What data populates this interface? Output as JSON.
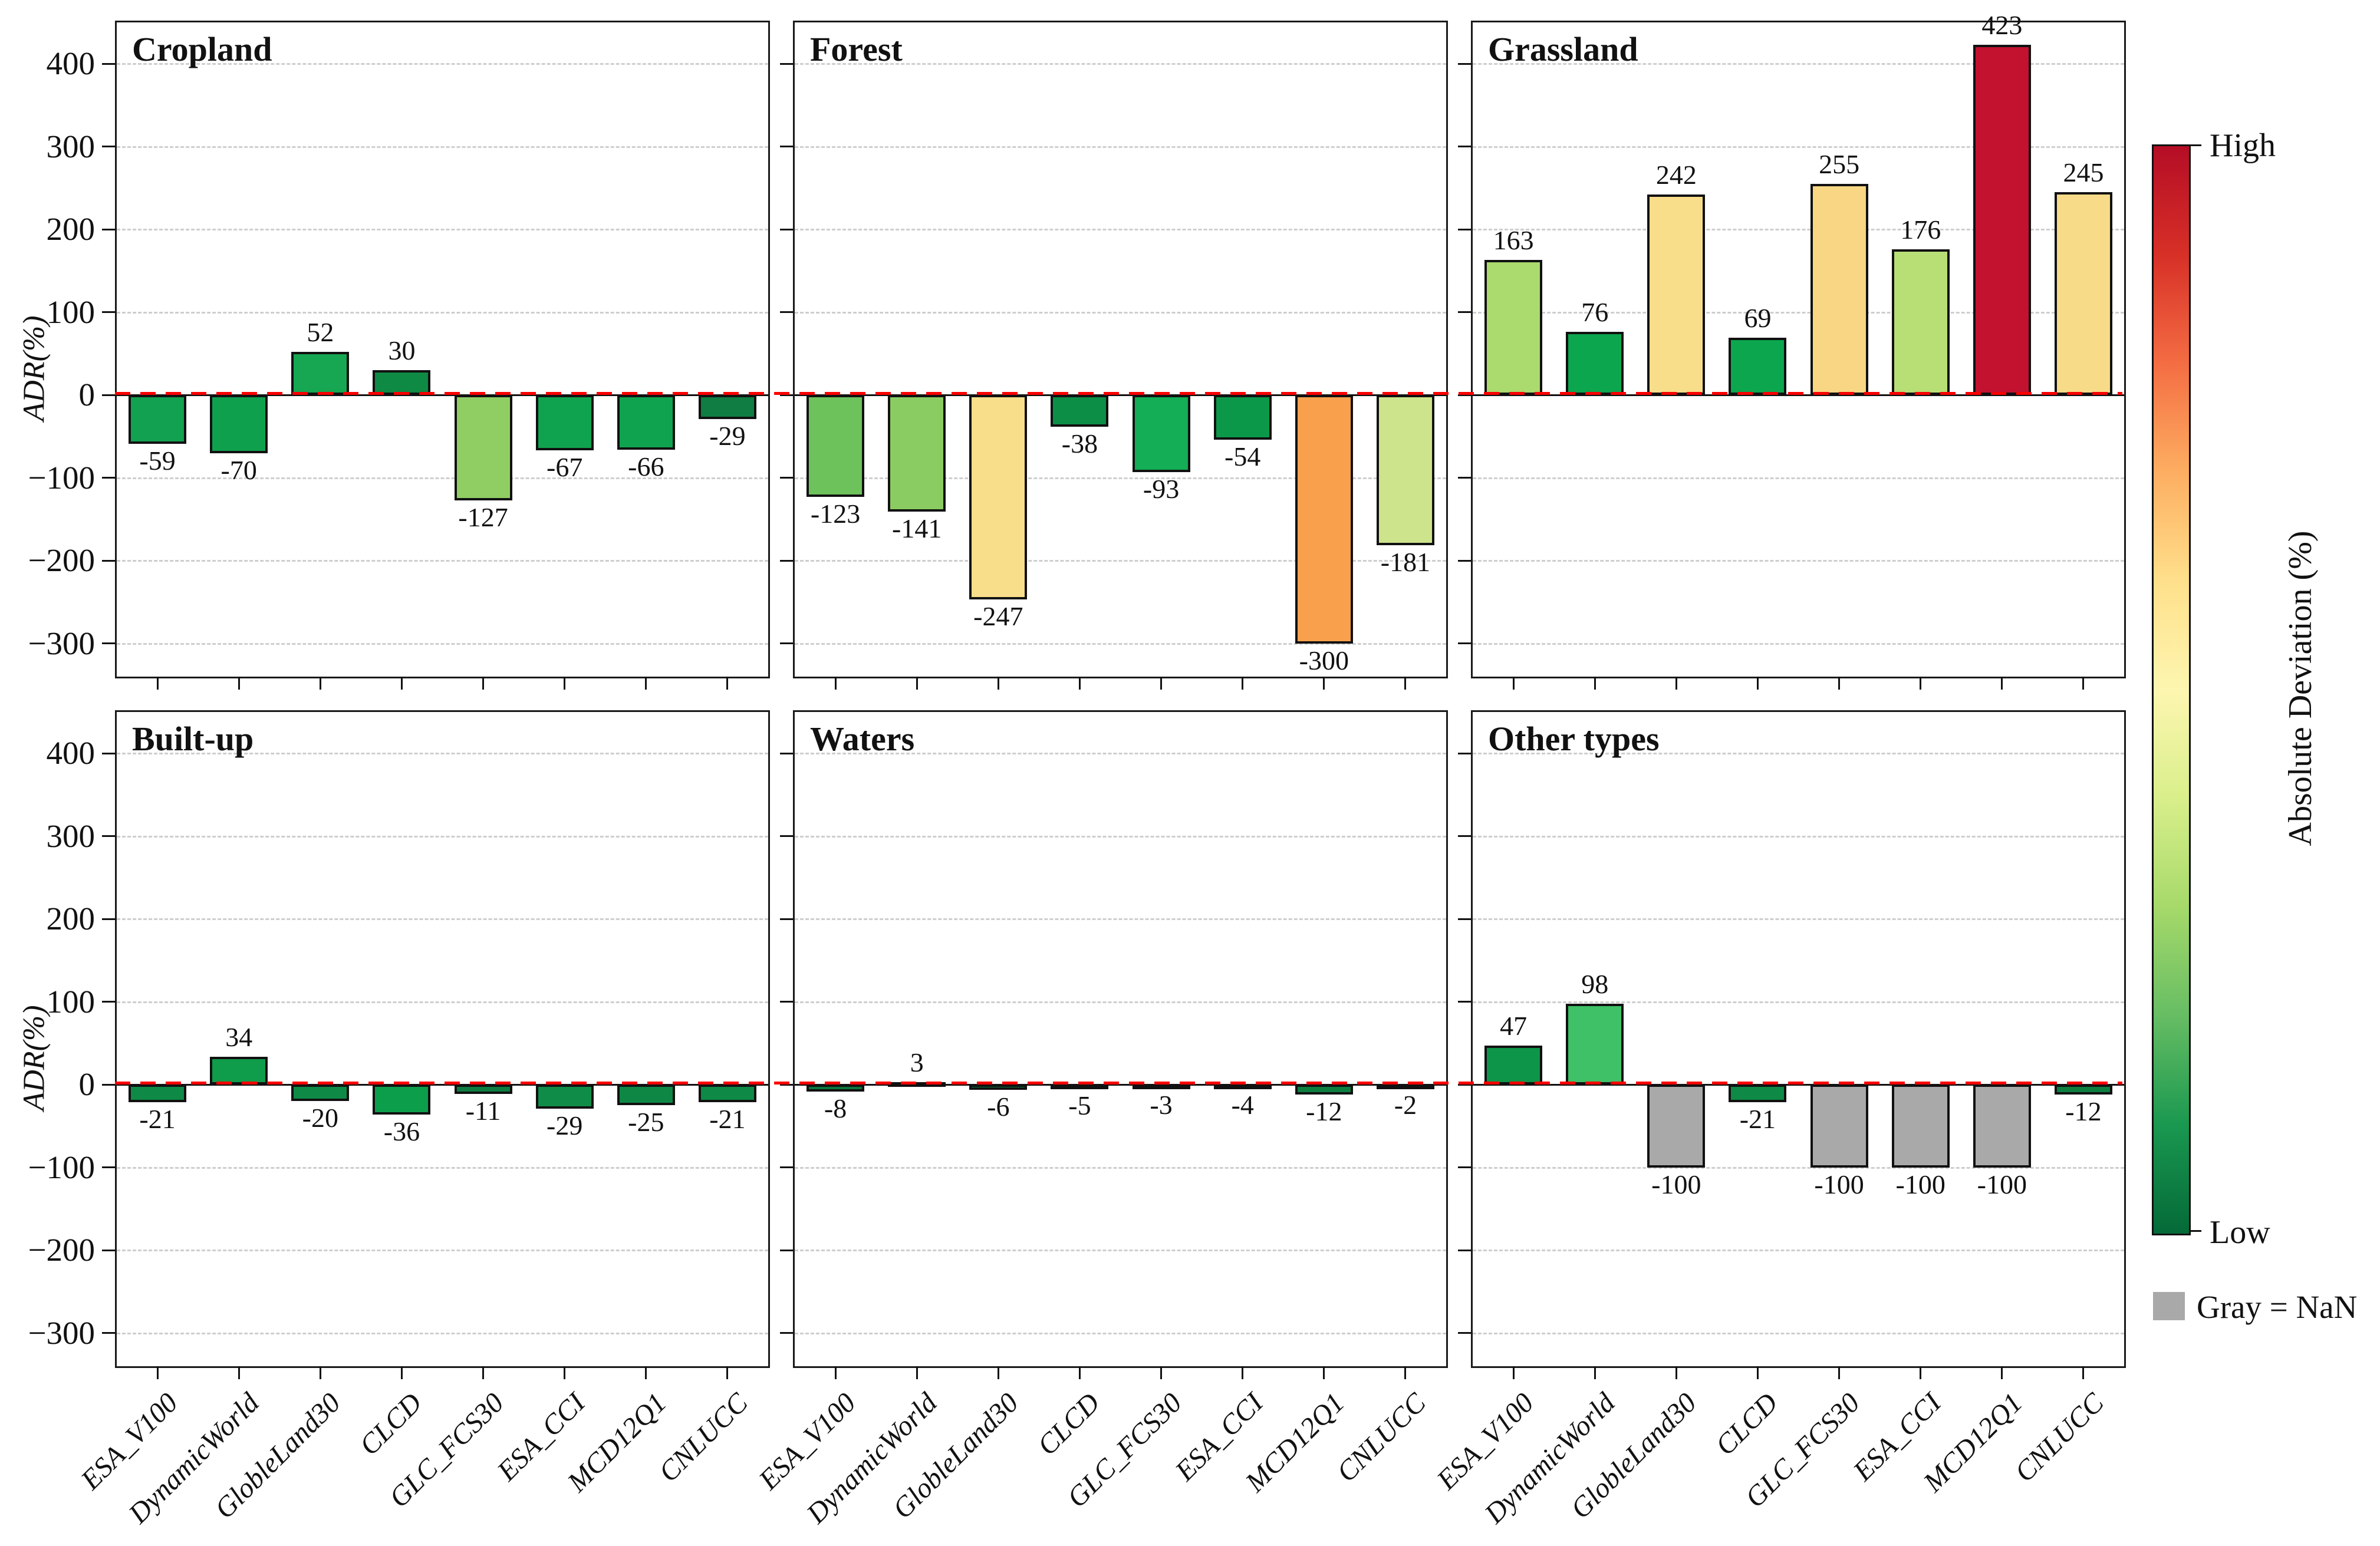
{
  "figure": {
    "ylabel": "ADR(%)",
    "yticks": [
      400,
      300,
      200,
      100,
      0,
      -100,
      -200,
      -300
    ],
    "ytick_labels": [
      "400",
      "300",
      "200",
      "100",
      "0",
      "−100",
      "−200",
      "−300"
    ],
    "ylim": [
      -340,
      450
    ],
    "categories": [
      "ESA_V100",
      "DynamicWorld",
      "GlobleLand30",
      "CLCD",
      "GLC_FCS30",
      "ESA_CCI",
      "MCD12Q1",
      "CNLUCC"
    ],
    "grid_color": "#cecece",
    "zero_line_color": "#fa0000",
    "nan_color": "#a9a9a9"
  },
  "colorbar": {
    "title": "Absolute Deviation (%)",
    "high": "High",
    "low": "Low",
    "nan_note": "Gray = NaN",
    "gradient": [
      "#b50d26",
      "#d73027",
      "#f46d43",
      "#fdae61",
      "#fee08b",
      "#fdf6b0",
      "#d9ef8b",
      "#a6d96a",
      "#66bd63",
      "#1a9850",
      "#046a38"
    ]
  },
  "chart_data": [
    {
      "type": "bar",
      "title": "Cropland",
      "values": [
        -59,
        -70,
        52,
        30,
        -127,
        -67,
        -66,
        -29
      ],
      "bar_colors": [
        "#12a150",
        "#0fa04e",
        "#17a651",
        "#0e8a45",
        "#90ce63",
        "#10a34f",
        "#10a34f",
        "#107d42"
      ],
      "nan_mask": [
        false,
        false,
        false,
        false,
        false,
        false,
        false,
        false
      ]
    },
    {
      "type": "bar",
      "title": "Forest",
      "values": [
        -123,
        -141,
        -247,
        -38,
        -93,
        -54,
        -300,
        -181
      ],
      "bar_colors": [
        "#6ec25c",
        "#8bcc62",
        "#f8dd8a",
        "#0c8e47",
        "#13ae55",
        "#0b9849",
        "#f9a04d",
        "#cde48d"
      ],
      "nan_mask": [
        false,
        false,
        false,
        false,
        false,
        false,
        false,
        false
      ]
    },
    {
      "type": "bar",
      "title": "Grassland",
      "values": [
        163,
        76,
        242,
        69,
        255,
        176,
        423,
        245
      ],
      "bar_colors": [
        "#abda6e",
        "#0ca64e",
        "#f8dd8a",
        "#0ca64e",
        "#f8d683",
        "#b8de76",
        "#c21230",
        "#f8db88"
      ],
      "nan_mask": [
        false,
        false,
        false,
        false,
        false,
        false,
        false,
        false
      ]
    },
    {
      "type": "bar",
      "title": "Built-up",
      "values": [
        -21,
        34,
        -20,
        -36,
        -11,
        -29,
        -25,
        -21
      ],
      "bar_colors": [
        "#0e8a46",
        "#0f9c4b",
        "#0e8a46",
        "#0d9e4c",
        "#0d7c40",
        "#0f8c47",
        "#0e8745",
        "#0e8a46"
      ],
      "nan_mask": [
        false,
        false,
        false,
        false,
        false,
        false,
        false,
        false
      ]
    },
    {
      "type": "bar",
      "title": "Waters",
      "values": [
        -8,
        3,
        -6,
        -5,
        -3,
        -4,
        -12,
        -2
      ],
      "bar_colors": [
        "#0a763c",
        "#076f38",
        "#09743b",
        "#09733a",
        "#087138",
        "#087139",
        "#0c7e40",
        "#077038"
      ],
      "nan_mask": [
        false,
        false,
        false,
        false,
        false,
        false,
        false,
        false
      ]
    },
    {
      "type": "bar",
      "title": "Other types",
      "values": [
        47,
        98,
        -100,
        -21,
        -100,
        -100,
        -100,
        -12
      ],
      "bar_colors": [
        "#0d9549",
        "#3ec167",
        "#a9a9a9",
        "#0e8a46",
        "#a9a9a9",
        "#a9a9a9",
        "#a9a9a9",
        "#0c7e40"
      ],
      "nan_mask": [
        false,
        false,
        true,
        false,
        true,
        true,
        true,
        false
      ]
    }
  ]
}
